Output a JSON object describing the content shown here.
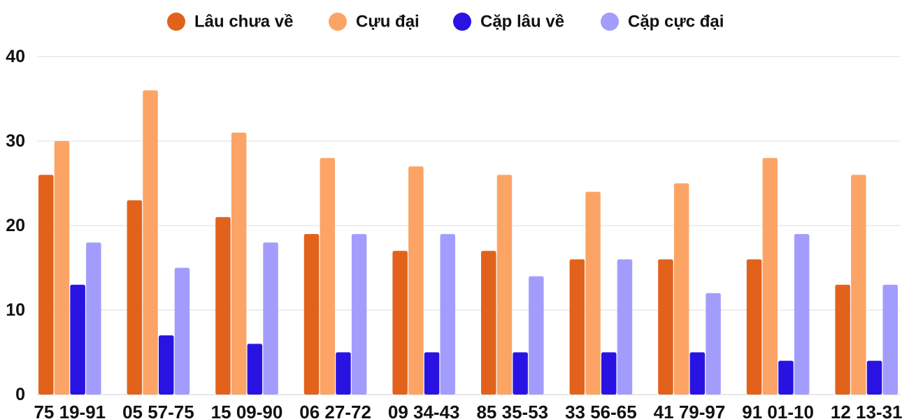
{
  "chart_data": {
    "type": "bar",
    "categories": [
      "75 19-91",
      "05 57-75",
      "15 09-90",
      "06 27-72",
      "09 34-43",
      "85 35-53",
      "33 56-65",
      "41 79-97",
      "91 01-10",
      "12 13-31"
    ],
    "series": [
      {
        "name": "Lâu chưa về",
        "color": "#e2621b",
        "values": [
          26,
          23,
          21,
          19,
          17,
          17,
          16,
          16,
          16,
          13
        ]
      },
      {
        "name": "Cựu đại",
        "color": "#fca466",
        "values": [
          30,
          36,
          31,
          28,
          27,
          26,
          24,
          25,
          28,
          26
        ]
      },
      {
        "name": "Cặp lâu về",
        "color": "#2913e3",
        "values": [
          13,
          7,
          6,
          5,
          5,
          5,
          5,
          5,
          4,
          4
        ]
      },
      {
        "name": "Cặp cực đại",
        "color": "#a29dfd",
        "values": [
          18,
          15,
          18,
          19,
          19,
          14,
          16,
          12,
          19,
          13
        ]
      }
    ],
    "yticks": [
      "0",
      "10",
      "20",
      "30",
      "40"
    ],
    "ylim": [
      0,
      40
    ],
    "grid": true,
    "legend_position": "top-center",
    "title": "",
    "xlabel": "",
    "ylabel": ""
  }
}
